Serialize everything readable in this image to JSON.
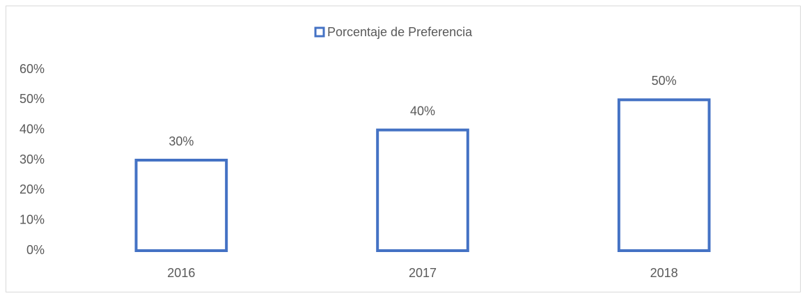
{
  "chart_data": {
    "type": "bar",
    "legend_title": null,
    "series": [
      {
        "name": "Porcentaje de Preferencia",
        "color": "#4472c4",
        "values": [
          30,
          40,
          50
        ],
        "value_labels": [
          "30%",
          "40%",
          "50%"
        ]
      }
    ],
    "categories": [
      "2016",
      "2017",
      "2018"
    ],
    "ylim": [
      0,
      60
    ],
    "yticks": [
      {
        "value": 0,
        "label": "0%"
      },
      {
        "value": 10,
        "label": "10%"
      },
      {
        "value": 20,
        "label": "20%"
      },
      {
        "value": 30,
        "label": "30%"
      },
      {
        "value": 40,
        "label": "40%"
      },
      {
        "value": 50,
        "label": "50%"
      },
      {
        "value": 60,
        "label": "60%"
      }
    ],
    "grid": false,
    "legend": "top"
  }
}
